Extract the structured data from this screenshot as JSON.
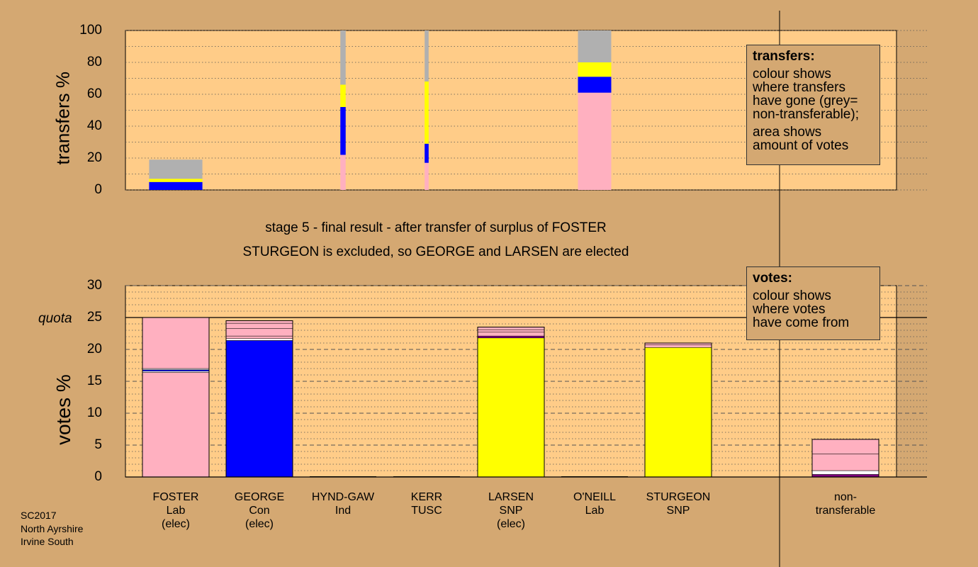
{
  "chart_data": [
    {
      "type": "bar",
      "stacked": true,
      "ylabel": "transfers %",
      "ylim": [
        0,
        100
      ],
      "yticks": [
        0,
        20,
        40,
        60,
        80,
        100
      ],
      "grid": true,
      "note": "bar width shows amount of votes",
      "candidates": [
        "FOSTER",
        "GEORGE",
        "HYND-GAW",
        "KERR",
        "LARSEN",
        "O'NEILL",
        "STURGEON"
      ],
      "bars": [
        {
          "candidate": "FOSTER",
          "segments": [
            {
              "to": "GEORGE",
              "color": "#0000ff",
              "value": 5
            },
            {
              "to": "LARSEN",
              "color": "#ffff00",
              "value": 2
            },
            {
              "to": "non-transferable",
              "color": "#b0b0b0",
              "value": 12
            }
          ]
        },
        {
          "candidate": "HYND-GAW",
          "segments": [
            {
              "to": "FOSTER",
              "color": "#ffb0c0",
              "value": 22
            },
            {
              "to": "GEORGE",
              "color": "#0000ff",
              "value": 30
            },
            {
              "to": "LARSEN",
              "color": "#ffff00",
              "value": 14
            },
            {
              "to": "non-transferable",
              "color": "#b0b0b0",
              "value": 34
            }
          ]
        },
        {
          "candidate": "KERR",
          "segments": [
            {
              "to": "FOSTER",
              "color": "#ffb0c0",
              "value": 17
            },
            {
              "to": "GEORGE",
              "color": "#0000ff",
              "value": 12
            },
            {
              "to": "LARSEN",
              "color": "#ffff00",
              "value": 39
            },
            {
              "to": "non-transferable",
              "color": "#b0b0b0",
              "value": 32
            }
          ]
        },
        {
          "candidate": "O'NEILL",
          "segments": [
            {
              "to": "FOSTER",
              "color": "#ffb0c0",
              "value": 61
            },
            {
              "to": "GEORGE",
              "color": "#0000ff",
              "value": 10
            },
            {
              "to": "LARSEN",
              "color": "#ffff00",
              "value": 9
            },
            {
              "to": "non-transferable",
              "color": "#b0b0b0",
              "value": 20
            }
          ]
        }
      ],
      "bar_weights": {
        "FOSTER": 0.8,
        "HYND-GAW": 0.08,
        "KERR": 0.06,
        "O'NEILL": 0.5
      },
      "legend": {
        "title": "transfers:",
        "lines1": [
          "colour shows",
          "where transfers",
          "have gone (grey=",
          "non-transferable);"
        ],
        "lines2": [
          "area shows",
          "amount of votes"
        ]
      }
    },
    {
      "type": "bar",
      "stacked": true,
      "ylabel": "votes %",
      "ylim": [
        0,
        30
      ],
      "yticks": [
        0,
        5,
        10,
        15,
        20,
        25,
        30
      ],
      "quota": 25,
      "quota_label": "quota",
      "grid": true,
      "categories": [
        {
          "name": "FOSTER",
          "party": "Lab",
          "status": "(elec)"
        },
        {
          "name": "GEORGE",
          "party": "Con",
          "status": "(elec)"
        },
        {
          "name": "HYND-GAW",
          "party": "Ind",
          "status": ""
        },
        {
          "name": "KERR",
          "party": "TUSC",
          "status": ""
        },
        {
          "name": "LARSEN",
          "party": "SNP",
          "status": "(elec)"
        },
        {
          "name": "O'NEILL",
          "party": "Lab",
          "status": ""
        },
        {
          "name": "STURGEON",
          "party": "SNP",
          "status": ""
        },
        {
          "name": "non-",
          "party": "transferable",
          "status": ""
        }
      ],
      "stacks": [
        {
          "candidate": "FOSTER",
          "segments": [
            {
              "color": "#ffb0c0",
              "value": 16.4
            },
            {
              "color": "#ffffff",
              "value": 0.2
            },
            {
              "color": "#0000ff",
              "value": 0.2
            },
            {
              "color": "#ffffff",
              "value": 0.2
            },
            {
              "color": "#ffb0c0",
              "value": 8.0
            }
          ]
        },
        {
          "candidate": "GEORGE",
          "segments": [
            {
              "color": "#0000ff",
              "value": 21.4
            },
            {
              "color": "#ffffff",
              "value": 0.3
            },
            {
              "color": "#ffb0c0",
              "value": 0.4
            },
            {
              "color": "#ffb0c0",
              "value": 1.2
            },
            {
              "color": "#ffb0c0",
              "value": 0.8
            },
            {
              "color": "#ffb0c0",
              "value": 0.4
            }
          ]
        },
        {
          "candidate": "HYND-GAW",
          "segments": []
        },
        {
          "candidate": "KERR",
          "segments": []
        },
        {
          "candidate": "LARSEN",
          "segments": [
            {
              "color": "#ffff00",
              "value": 21.8
            },
            {
              "color": "#800080",
              "value": 0.3
            },
            {
              "color": "#ffb0c0",
              "value": 0.6
            },
            {
              "color": "#ffb0c0",
              "value": 0.4
            },
            {
              "color": "#ffb0c0",
              "value": 0.4
            }
          ]
        },
        {
          "candidate": "O'NEILL",
          "segments": []
        },
        {
          "candidate": "STURGEON",
          "segments": [
            {
              "color": "#ffff00",
              "value": 20.3
            },
            {
              "color": "#ffb0c0",
              "value": 0.4
            },
            {
              "color": "#ffb0c0",
              "value": 0.3
            }
          ]
        },
        {
          "candidate": "non-transferable",
          "segments": [
            {
              "color": "#800080",
              "value": 0.4
            },
            {
              "color": "#ffffff",
              "value": 0.6
            },
            {
              "color": "#ffb0c0",
              "value": 2.6
            },
            {
              "color": "#ffb0c0",
              "value": 2.3
            }
          ]
        }
      ],
      "legend": {
        "title": "votes:",
        "lines1": [
          "colour shows",
          "where votes",
          "have come from"
        ]
      }
    }
  ],
  "captions": {
    "line1": "stage 5 - final result - after transfer of surplus of FOSTER",
    "line2": "STURGEON is excluded, so GEORGE and LARSEN are elected"
  },
  "footer": [
    "SC2017",
    "North Ayrshire",
    "Irvine South"
  ],
  "colors": {
    "background": "#d4a872",
    "plot": "#ffcc88",
    "Lab": "#ffb0c0",
    "Con": "#0000ff",
    "SNP": "#ffff00",
    "non_transferable": "#b0b0b0"
  }
}
